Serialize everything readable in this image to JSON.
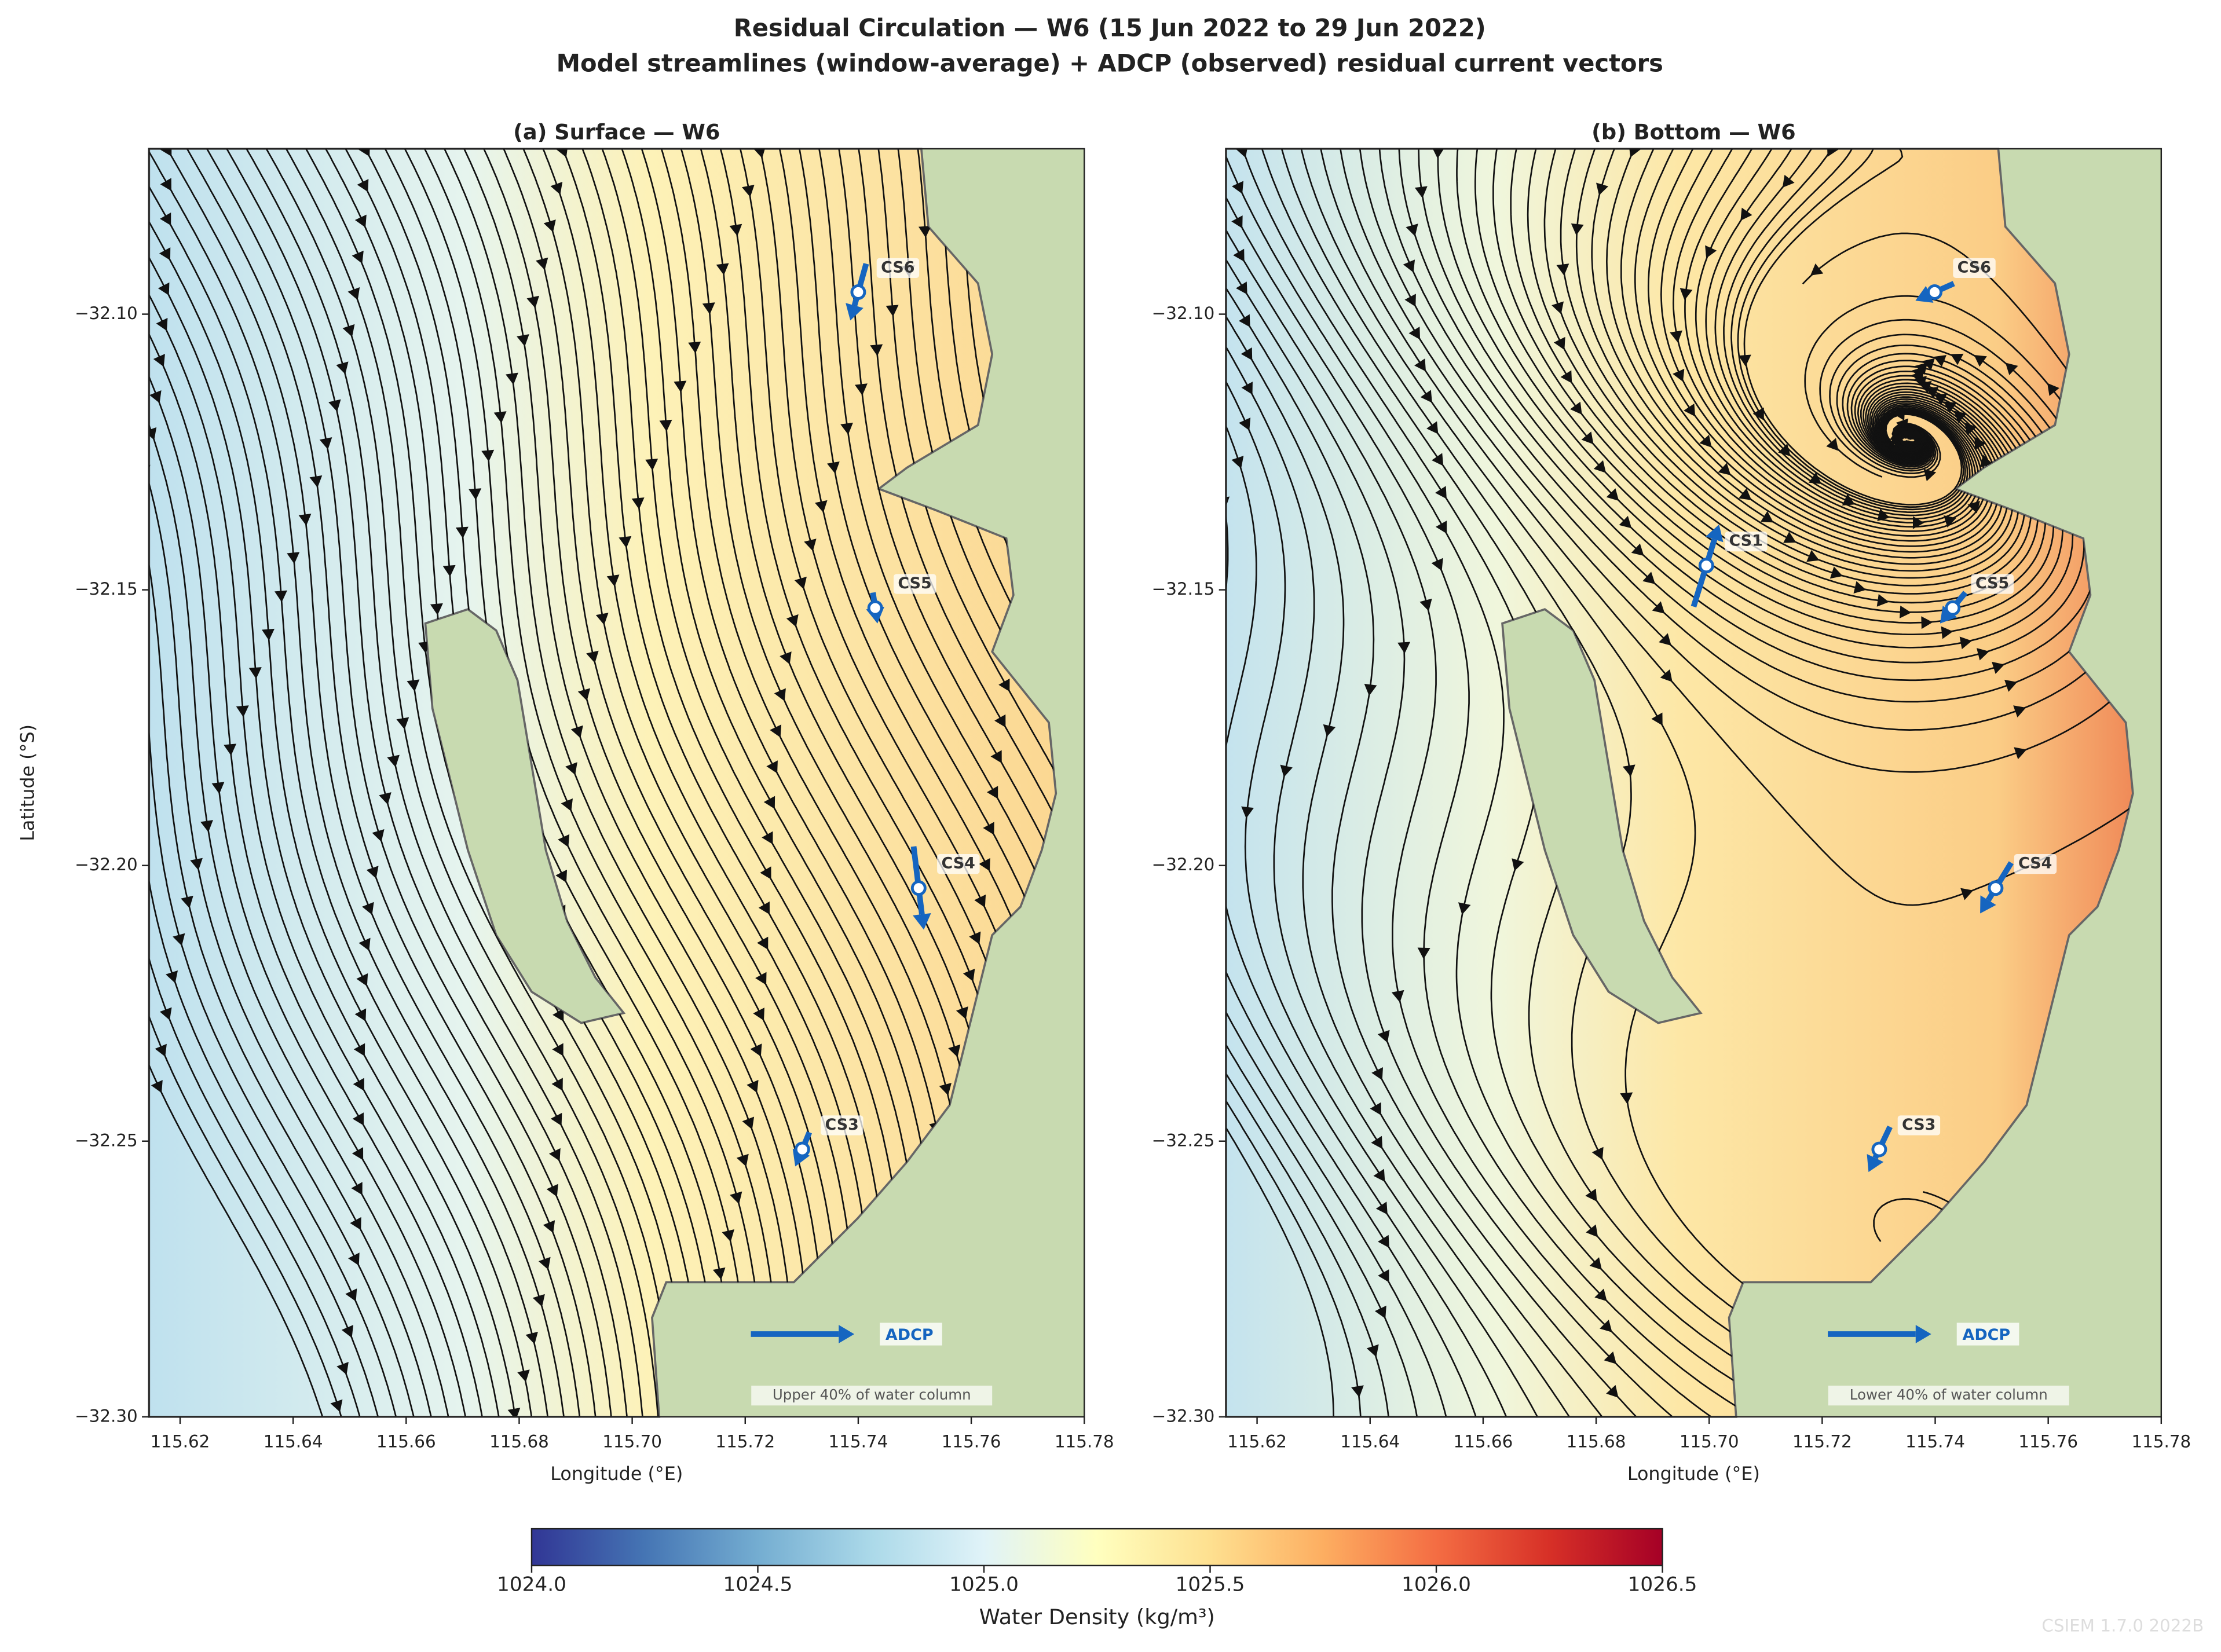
{
  "suptitle": [
    "Residual Circulation — W6  (15 Jun 2022 to 29 Jun 2022)",
    "Model streamlines (window-average) + ADCP (observed) residual current vectors"
  ],
  "chart_data": [
    {
      "type": "map",
      "title": "(a) Surface — W6",
      "xlabel": "Longitude (°E)",
      "ylabel": "Latitude (°S)",
      "xlim": [
        115.6145,
        115.78
      ],
      "ylim": [
        -32.3,
        -32.07
      ],
      "xticks": [
        115.62,
        115.64,
        115.66,
        115.68,
        {
          "value": 115.7,
          "label": "115.70"
        },
        115.72,
        115.74,
        115.76,
        115.78
      ],
      "yticks": [
        {
          "value": -32.1,
          "label": "−32.10"
        },
        {
          "value": -32.15,
          "label": "−32.15"
        },
        {
          "value": -32.2,
          "label": "−32.20"
        },
        {
          "value": -32.25,
          "label": "−32.25"
        },
        {
          "value": -32.3,
          "label": "−32.30"
        }
      ],
      "color": "#1565c0",
      "stations": [
        {
          "name": "CS6",
          "lon": 115.74,
          "lat": -32.096,
          "dlon": -0.0028,
          "dlat": -0.0103
        },
        {
          "name": "CS5",
          "lon": 115.743,
          "lat": -32.1533,
          "dlon": 0.0008,
          "dlat": -0.0056
        },
        {
          "name": "CS4",
          "lon": 115.7507,
          "lat": -32.2041,
          "dlon": 0.0018,
          "dlat": -0.0151
        },
        {
          "name": "CS3",
          "lon": 115.7301,
          "lat": -32.2515,
          "dlon": -0.0025,
          "dlat": -0.0062
        }
      ],
      "reference": {
        "label": "ADCP",
        "lon": 115.721,
        "lat": -32.285,
        "dlon": 0.0183
      },
      "annotation": "Upper 40% of water column"
    },
    {
      "type": "map",
      "title": "(b) Bottom — W6",
      "xlabel": "Longitude (°E)",
      "xlim": [
        115.6145,
        115.78
      ],
      "ylim": [
        -32.3,
        -32.07
      ],
      "xticks": [
        115.62,
        115.64,
        115.66,
        115.68,
        {
          "value": 115.7,
          "label": "115.70"
        },
        115.72,
        115.74,
        115.76,
        115.78
      ],
      "yticks": [
        {
          "value": -32.1,
          "label": "−32.10"
        },
        {
          "value": -32.15,
          "label": "−32.15"
        },
        {
          "value": -32.2,
          "label": "−32.20"
        },
        {
          "value": -32.25,
          "label": "−32.25"
        },
        {
          "value": -32.3,
          "label": "−32.30"
        }
      ],
      "color": "#1565c0",
      "stations": [
        {
          "name": "CS6",
          "lon": 115.7399,
          "lat": -32.096,
          "dlon": -0.0068,
          "dlat": -0.0031
        },
        {
          "name": "CS1",
          "lon": 115.6995,
          "lat": -32.1456,
          "dlon": 0.0045,
          "dlat": 0.0149
        },
        {
          "name": "CS5",
          "lon": 115.7431,
          "lat": -32.1533,
          "dlon": -0.0045,
          "dlat": -0.0056
        },
        {
          "name": "CS4",
          "lon": 115.7507,
          "lat": -32.2041,
          "dlon": -0.0055,
          "dlat": -0.0092
        },
        {
          "name": "CS3",
          "lon": 115.7301,
          "lat": -32.2515,
          "dlon": -0.0038,
          "dlat": -0.0082
        }
      ],
      "reference": {
        "label": "ADCP",
        "lon": 115.721,
        "lat": -32.285,
        "dlon": 0.0183
      },
      "annotation": "Lower 40% of water column"
    }
  ],
  "colorbar": {
    "label": "Water Density (kg/m³)",
    "lim": [
      1024,
      1026.5
    ],
    "ticks": [
      {
        "value": 1024,
        "label": "1024.0"
      },
      {
        "value": 1024.5,
        "label": "1024.5"
      },
      {
        "value": 1025,
        "label": "1025.0"
      },
      {
        "value": 1025.5,
        "label": "1025.5"
      },
      {
        "value": 1026,
        "label": "1026.0"
      },
      {
        "value": 1026.5,
        "label": "1026.5"
      }
    ]
  },
  "watermark": "CSIEM 1.7.0 2022B"
}
